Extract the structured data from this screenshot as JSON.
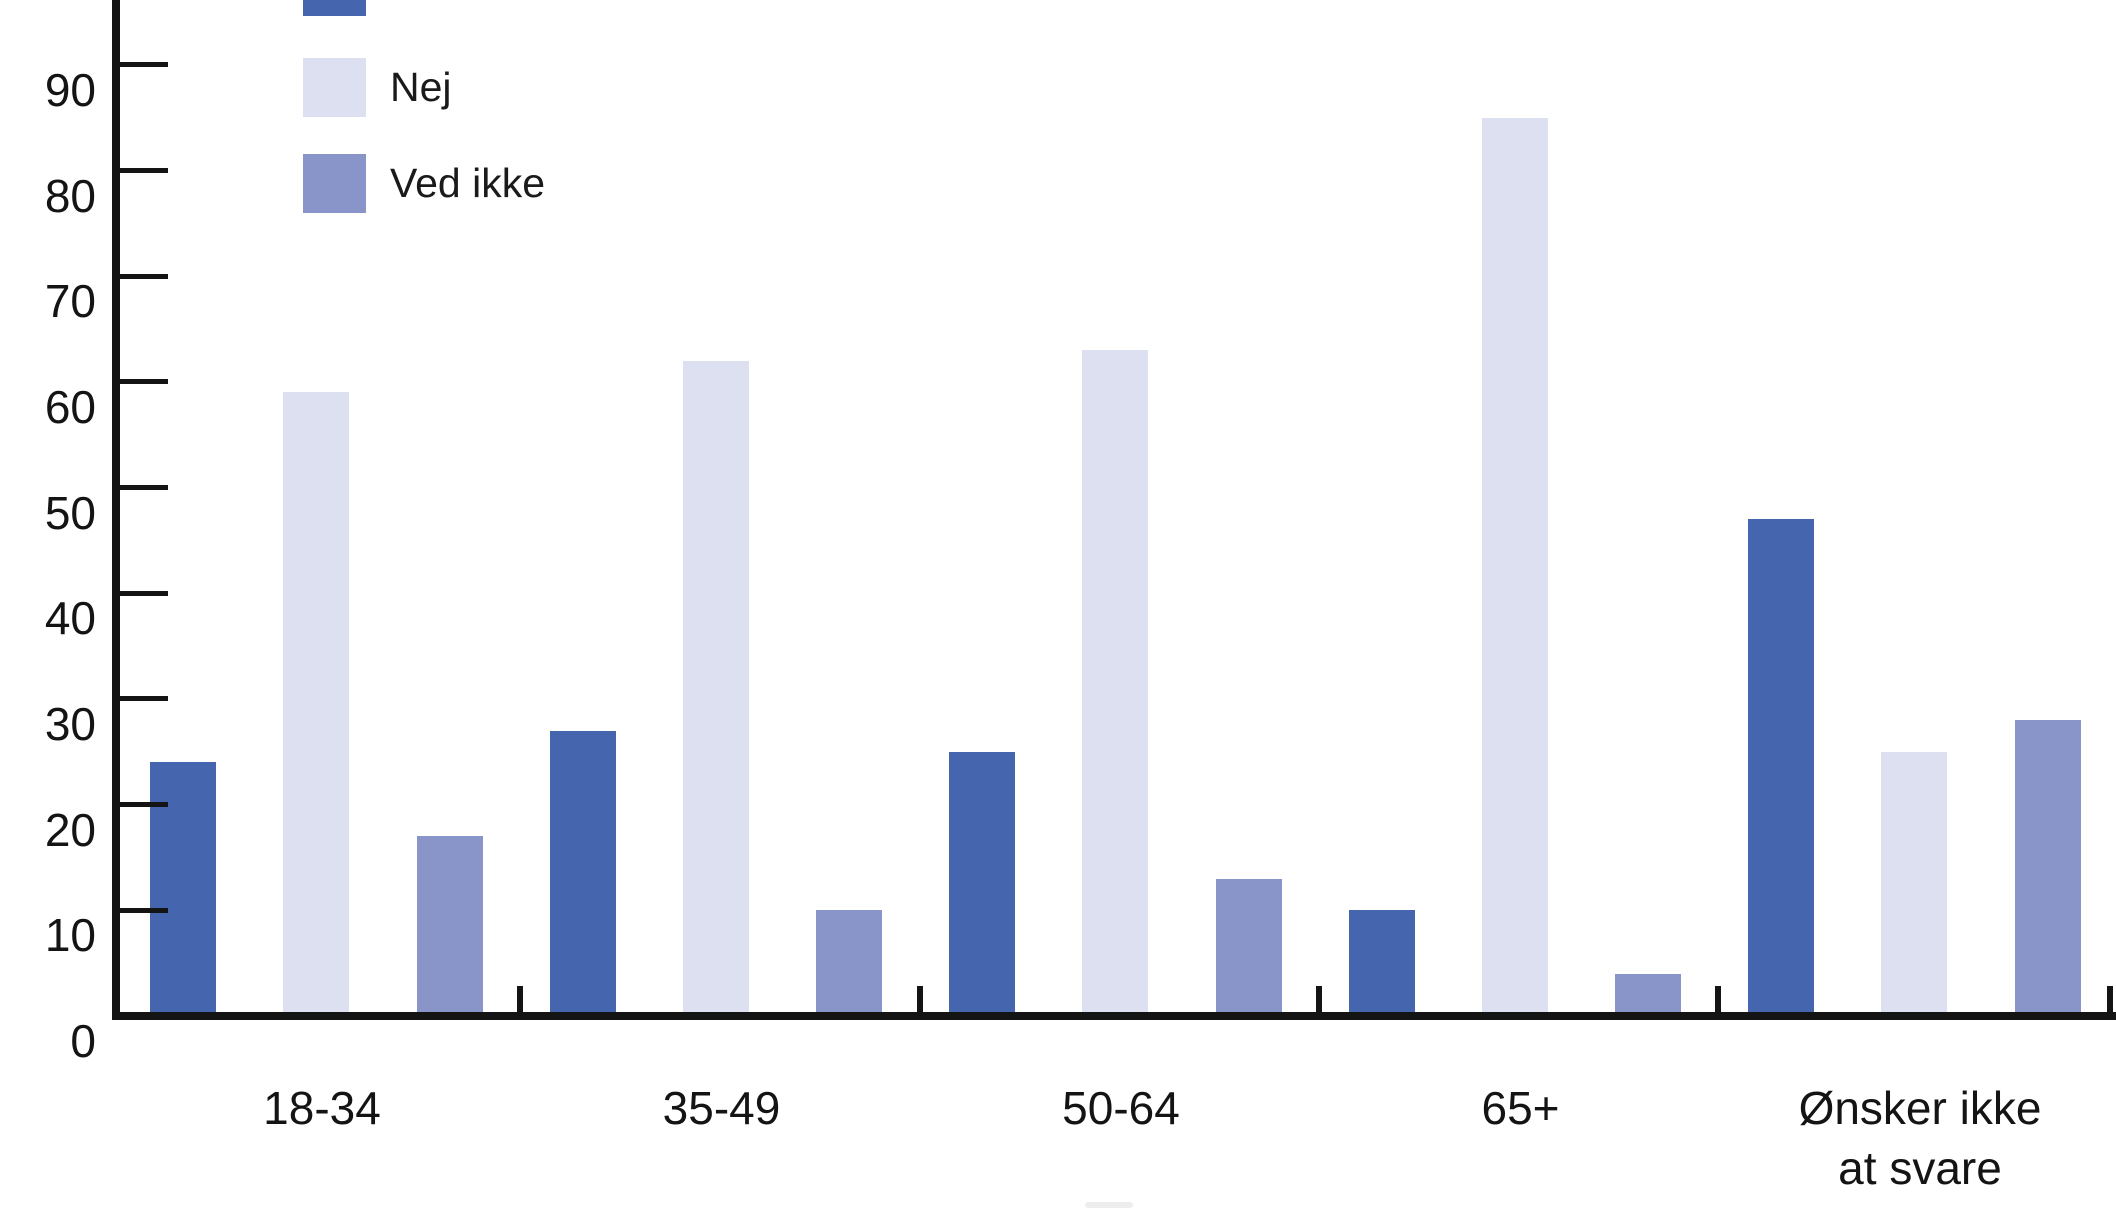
{
  "colors": {
    "axis": "#141414",
    "text": "#141414",
    "series_1": "#4565ae",
    "series_2": "#dde0f1",
    "series_3": "#8995c9",
    "background": "#ffffff"
  },
  "legend": {
    "items": [
      {
        "label": "",
        "color_key": "series_1",
        "clipped_at_top": true
      },
      {
        "label": "Nej",
        "color_key": "series_2",
        "clipped_at_top": false
      },
      {
        "label": "Ved ikke",
        "color_key": "series_3",
        "clipped_at_top": false
      }
    ]
  },
  "y_axis": {
    "tick_values": [
      0,
      10,
      20,
      30,
      40,
      50,
      60,
      70,
      80,
      90
    ]
  },
  "chart_data": {
    "type": "bar",
    "title": "",
    "xlabel": "",
    "ylabel": "",
    "categories": [
      "18-34",
      "35-49",
      "50-64",
      "65+",
      "Ønsker ikke\nat svare"
    ],
    "series": [
      {
        "name": "",
        "legend_label_visible": false,
        "color_key": "series_1",
        "values": [
          24,
          27,
          25,
          10,
          47
        ]
      },
      {
        "name": "Nej",
        "legend_label_visible": true,
        "color_key": "series_2",
        "values": [
          59,
          62,
          63,
          85,
          25
        ]
      },
      {
        "name": "Ved ikke",
        "legend_label_visible": true,
        "color_key": "series_3",
        "values": [
          17,
          10,
          13,
          4,
          28
        ]
      }
    ],
    "ylim": [
      0,
      100
    ],
    "grid": false,
    "legend_position": "top-left"
  }
}
